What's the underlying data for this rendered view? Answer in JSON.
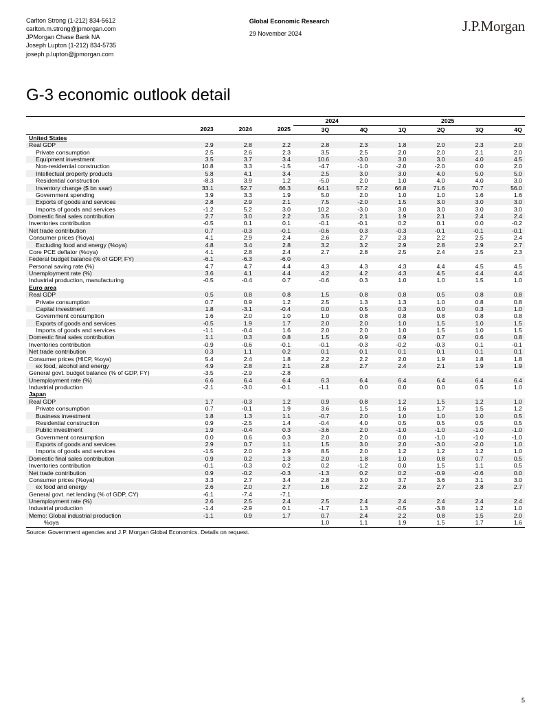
{
  "header": {
    "left": {
      "line1": "Carlton Strong  (1-212) 834-5612",
      "line2": "carlton.m.strong@jpmorgan.com",
      "line3": "JPMorgan Chase Bank NA",
      "line4": "Joseph Lupton  (1-212) 834-5735",
      "line5": "joseph.p.lupton@jpmorgan.com"
    },
    "center": {
      "title": "Global Economic Research",
      "date": "29 November 2024"
    },
    "logo": "J.P.Morgan"
  },
  "page_title": "G-3 economic outlook detail",
  "columns": {
    "years": [
      "2023",
      "2024",
      "2025"
    ],
    "group_2024": "2024",
    "group_2025": "2025",
    "q24": [
      "3Q",
      "4Q"
    ],
    "q25": [
      "1Q",
      "2Q",
      "3Q",
      "4Q"
    ]
  },
  "sections": [
    {
      "name": "United States",
      "rows": [
        {
          "label": "Real GDP",
          "indent": 0,
          "alt": 1,
          "v": [
            "2.9",
            "2.8",
            "2.2",
            "2.8",
            "2.3",
            "1.8",
            "2.0",
            "2.3",
            "2.0"
          ]
        },
        {
          "label": "Private consumption",
          "indent": 1,
          "alt": 0,
          "v": [
            "2.5",
            "2.6",
            "2.3",
            "3.5",
            "2.5",
            "2.0",
            "2.0",
            "2.1",
            "2.0"
          ]
        },
        {
          "label": "Equipment investment",
          "indent": 1,
          "alt": 1,
          "v": [
            "3.5",
            "3.7",
            "3.4",
            "10.6",
            "-3.0",
            "3.0",
            "3.0",
            "4.0",
            "4.5"
          ]
        },
        {
          "label": "Non-residential construction",
          "indent": 1,
          "alt": 0,
          "v": [
            "10.8",
            "3.3",
            "-1.5",
            "-4.7",
            "-1.0",
            "-2.0",
            "-2.0",
            "0.0",
            "2.0"
          ]
        },
        {
          "label": "Intellectual property products",
          "indent": 1,
          "alt": 1,
          "v": [
            "5.8",
            "4.1",
            "3.4",
            "2.5",
            "3.0",
            "3.0",
            "4.0",
            "5.0",
            "5.0"
          ]
        },
        {
          "label": "Residential construction",
          "indent": 1,
          "alt": 0,
          "v": [
            "-8.3",
            "3.9",
            "1.2",
            "-5.0",
            "2.0",
            "1.0",
            "4.0",
            "4.0",
            "3.0"
          ]
        },
        {
          "label": "Inventory change ($ bn saar)",
          "indent": 1,
          "alt": 1,
          "v": [
            "33.1",
            "52.7",
            "66.3",
            "64.1",
            "57.2",
            "66.8",
            "71.6",
            "70.7",
            "56.0"
          ]
        },
        {
          "label": "Government spending",
          "indent": 1,
          "alt": 0,
          "v": [
            "3.9",
            "3.3",
            "1.9",
            "5.0",
            "2.0",
            "1.0",
            "1.0",
            "1.6",
            "1.6"
          ]
        },
        {
          "label": "Exports of goods and services",
          "indent": 1,
          "alt": 1,
          "v": [
            "2.8",
            "2.9",
            "2.1",
            "7.5",
            "-2.0",
            "1.5",
            "3.0",
            "3.0",
            "3.0"
          ]
        },
        {
          "label": "Imports of goods and services",
          "indent": 1,
          "alt": 0,
          "v": [
            "-1.2",
            "5.2",
            "3.0",
            "10.2",
            "-3.0",
            "3.0",
            "3.0",
            "3.0",
            "3.0"
          ]
        },
        {
          "label": "Domestic final sales contribution",
          "indent": 0,
          "alt": 1,
          "v": [
            "2.7",
            "3.0",
            "2.2",
            "3.5",
            "2.1",
            "1.9",
            "2.1",
            "2.4",
            "2.4"
          ]
        },
        {
          "label": "Inventories contribution",
          "indent": 0,
          "alt": 0,
          "v": [
            "-0.5",
            "0.1",
            "0.1",
            "-0.1",
            "-0.1",
            "0.2",
            "0.1",
            "0.0",
            "-0.2"
          ]
        },
        {
          "label": "Net trade contribution",
          "indent": 0,
          "alt": 1,
          "v": [
            "0.7",
            "-0.3",
            "-0.1",
            "-0.6",
            "0.3",
            "-0.3",
            "-0.1",
            "-0.1",
            "-0.1"
          ]
        },
        {
          "label": "Consumer prices (%oya)",
          "indent": 0,
          "alt": 0,
          "v": [
            "4.1",
            "2.9",
            "2.4",
            "2.6",
            "2.7",
            "2.3",
            "2.2",
            "2.5",
            "2.4"
          ]
        },
        {
          "label": "Excluding food and energy (%oya)",
          "indent": 1,
          "alt": 1,
          "v": [
            "4.8",
            "3.4",
            "2.8",
            "3.2",
            "3.2",
            "2.9",
            "2.8",
            "2.9",
            "2.7"
          ]
        },
        {
          "label": "Core PCE deflator (%oya)",
          "indent": 0,
          "alt": 0,
          "v": [
            "4.1",
            "2.8",
            "2.4",
            "2.7",
            "2.8",
            "2.5",
            "2.4",
            "2.5",
            "2.3"
          ]
        },
        {
          "label": "Federal budget balance (% of GDP, FY)",
          "indent": 0,
          "alt": 1,
          "v": [
            "-6.1",
            "-6.3",
            "-6.0",
            "",
            "",
            "",
            "",
            "",
            ""
          ]
        },
        {
          "label": "Personal saving rate (%)",
          "indent": 0,
          "alt": 0,
          "v": [
            "4.7",
            "4.7",
            "4.4",
            "4.3",
            "4.3",
            "4.3",
            "4.4",
            "4.5",
            "4.5"
          ]
        },
        {
          "label": "Unemployment rate (%)",
          "indent": 0,
          "alt": 1,
          "v": [
            "3.6",
            "4.1",
            "4.4",
            "4.2",
            "4.2",
            "4.3",
            "4.5",
            "4.4",
            "4.4"
          ]
        },
        {
          "label": "Industrial production, manufacturing",
          "indent": 0,
          "alt": 0,
          "v": [
            "-0.5",
            "-0.4",
            "0.7",
            "-0.6",
            "0.3",
            "1.0",
            "1.0",
            "1.5",
            "1.0"
          ]
        }
      ]
    },
    {
      "name": "Euro area",
      "rows": [
        {
          "label": "Real GDP",
          "indent": 0,
          "alt": 1,
          "v": [
            "0.5",
            "0.8",
            "0.8",
            "1.5",
            "0.8",
            "0.8",
            "0.5",
            "0.8",
            "0.8"
          ]
        },
        {
          "label": "Private consumption",
          "indent": 1,
          "alt": 0,
          "v": [
            "0.7",
            "0.9",
            "1.2",
            "2.5",
            "1.3",
            "1.3",
            "1.0",
            "0.8",
            "0.8"
          ]
        },
        {
          "label": "Capital investment",
          "indent": 1,
          "alt": 1,
          "v": [
            "1.8",
            "-3.1",
            "-0.4",
            "0.0",
            "0.5",
            "0.3",
            "0.0",
            "0.3",
            "1.0"
          ]
        },
        {
          "label": "Government consumption",
          "indent": 1,
          "alt": 0,
          "v": [
            "1.6",
            "2.0",
            "1.0",
            "1.0",
            "0.8",
            "0.8",
            "0.8",
            "0.8",
            "0.8"
          ]
        },
        {
          "label": "Exports of goods and services",
          "indent": 1,
          "alt": 1,
          "v": [
            "-0.5",
            "1.9",
            "1.7",
            "2.0",
            "2.0",
            "1.0",
            "1.5",
            "1.0",
            "1.5"
          ]
        },
        {
          "label": "Imports of goods and services",
          "indent": 1,
          "alt": 0,
          "v": [
            "-1.1",
            "-0.4",
            "1.6",
            "2.0",
            "2.0",
            "1.0",
            "1.5",
            "1.0",
            "1.5"
          ]
        },
        {
          "label": "Domestic final sales contribution",
          "indent": 0,
          "alt": 1,
          "v": [
            "1.1",
            "0.3",
            "0.8",
            "1.5",
            "0.9",
            "0.9",
            "0.7",
            "0.6",
            "0.8"
          ]
        },
        {
          "label": "Inventories contribution",
          "indent": 0,
          "alt": 0,
          "v": [
            "-0.9",
            "-0.6",
            "-0.1",
            "-0.1",
            "-0.3",
            "-0.2",
            "-0.3",
            "0.1",
            "-0.1"
          ]
        },
        {
          "label": "Net trade contribution",
          "indent": 0,
          "alt": 1,
          "v": [
            "0.3",
            "1.1",
            "0.2",
            "0.1",
            "0.1",
            "0.1",
            "0.1",
            "0.1",
            "0.1"
          ]
        },
        {
          "label": "Consumer prices (HICP, %oya)",
          "indent": 0,
          "alt": 0,
          "v": [
            "5.4",
            "2.4",
            "1.8",
            "2.2",
            "2.2",
            "2.0",
            "1.9",
            "1.8",
            "1.8"
          ]
        },
        {
          "label": "ex food, alcohol and energy",
          "indent": 1,
          "alt": 1,
          "v": [
            "4.9",
            "2.8",
            "2.1",
            "2.8",
            "2.7",
            "2.4",
            "2.1",
            "1.9",
            "1.9"
          ]
        },
        {
          "label": "General govt. budget balance (% of GDP, FY)",
          "indent": 0,
          "alt": 0,
          "v": [
            "-3.5",
            "-2.9",
            "-2.8",
            "",
            "",
            "",
            "",
            "",
            ""
          ]
        },
        {
          "label": "Unemployment rate (%)",
          "indent": 0,
          "alt": 1,
          "v": [
            "6.6",
            "6.4",
            "6.4",
            "6.3",
            "6.4",
            "6.4",
            "6.4",
            "6.4",
            "6.4"
          ]
        },
        {
          "label": "Industrial production",
          "indent": 0,
          "alt": 0,
          "v": [
            "-2.1",
            "-3.0",
            "-0.1",
            "-1.1",
            "0.0",
            "0.0",
            "0.0",
            "0.5",
            "1.0"
          ]
        }
      ]
    },
    {
      "name": "Japan",
      "rows": [
        {
          "label": "Real GDP",
          "indent": 0,
          "alt": 1,
          "v": [
            "1.7",
            "-0.3",
            "1.2",
            "0.9",
            "0.8",
            "1.2",
            "1.5",
            "1.2",
            "1.0"
          ]
        },
        {
          "label": "Private consumption",
          "indent": 1,
          "alt": 0,
          "v": [
            "0.7",
            "-0.1",
            "1.9",
            "3.6",
            "1.5",
            "1.6",
            "1.7",
            "1.5",
            "1.2"
          ]
        },
        {
          "label": "Business investment",
          "indent": 1,
          "alt": 1,
          "v": [
            "1.8",
            "1.3",
            "1.1",
            "-0.7",
            "2.0",
            "1.0",
            "1.0",
            "1.0",
            "0.5"
          ]
        },
        {
          "label": "Residential construction",
          "indent": 1,
          "alt": 0,
          "v": [
            "0.9",
            "-2.5",
            "1.4",
            "-0.4",
            "4.0",
            "0.5",
            "0.5",
            "0.5",
            "0.5"
          ]
        },
        {
          "label": "Public investment",
          "indent": 1,
          "alt": 1,
          "v": [
            "1.9",
            "-0.4",
            "0.3",
            "-3.6",
            "2.0",
            "-1.0",
            "-1.0",
            "-1.0",
            "-1.0"
          ]
        },
        {
          "label": "Government consumption",
          "indent": 1,
          "alt": 0,
          "v": [
            "0.0",
            "0.6",
            "0.3",
            "2.0",
            "2.0",
            "0.0",
            "-1.0",
            "-1.0",
            "-1.0"
          ]
        },
        {
          "label": "Exports of goods and services",
          "indent": 1,
          "alt": 1,
          "v": [
            "2.9",
            "0.7",
            "1.1",
            "1.5",
            "3.0",
            "2.0",
            "-3.0",
            "-2.0",
            "1.0"
          ]
        },
        {
          "label": "Imports of goods and services",
          "indent": 1,
          "alt": 0,
          "v": [
            "-1.5",
            "2.0",
            "2.9",
            "8.5",
            "2.0",
            "1.2",
            "1.2",
            "1.2",
            "1.0"
          ]
        },
        {
          "label": "Domestic final sales contribution",
          "indent": 0,
          "alt": 1,
          "v": [
            "0.9",
            "0.2",
            "1.3",
            "2.0",
            "1.8",
            "1.0",
            "0.8",
            "0.7",
            "0.5"
          ]
        },
        {
          "label": "Inventories contribution",
          "indent": 0,
          "alt": 0,
          "v": [
            "-0.1",
            "-0.3",
            "0.2",
            "0.2",
            "-1.2",
            "0.0",
            "1.5",
            "1.1",
            "0.5"
          ]
        },
        {
          "label": "Net trade contribution",
          "indent": 0,
          "alt": 1,
          "v": [
            "0.9",
            "-0.2",
            "-0.3",
            "-1.3",
            "0.2",
            "0.2",
            "-0.9",
            "-0.6",
            "0.0"
          ]
        },
        {
          "label": "Consumer prices (%oya)",
          "indent": 0,
          "alt": 0,
          "v": [
            "3.3",
            "2.7",
            "3.4",
            "2.8",
            "3.0",
            "3.7",
            "3.6",
            "3.1",
            "3.0"
          ]
        },
        {
          "label": "ex food and energy",
          "indent": 1,
          "alt": 1,
          "v": [
            "2.6",
            "2.0",
            "2.7",
            "1.6",
            "2.2",
            "2.6",
            "2.7",
            "2.8",
            "2.7"
          ]
        },
        {
          "label": "General govt. net lending (% of GDP, CY)",
          "indent": 0,
          "alt": 0,
          "v": [
            "-6.1",
            "-7.4",
            "-7.1",
            "",
            "",
            "",
            "",
            "",
            ""
          ]
        },
        {
          "label": "Unemployment rate (%)",
          "indent": 0,
          "alt": 1,
          "v": [
            "2.6",
            "2.5",
            "2.4",
            "2.5",
            "2.4",
            "2.4",
            "2.4",
            "2.4",
            "2.4"
          ]
        },
        {
          "label": "Industrial production",
          "indent": 0,
          "alt": 0,
          "v": [
            "-1.4",
            "-2.9",
            "0.1",
            "-1.7",
            "1.3",
            "-0.5",
            "-3.8",
            "1.2",
            "1.0"
          ]
        },
        {
          "label": "Memo: Global industrial production",
          "indent": 0,
          "alt": 1,
          "v": [
            "-1.1",
            "0.9",
            "1.7",
            "0.7",
            "2.4",
            "2.2",
            "0.8",
            "1.5",
            "2.0"
          ]
        },
        {
          "label": "%oya",
          "indent": 2,
          "alt": 0,
          "v": [
            "",
            "",
            "",
            "1.0",
            "1.1",
            "1.9",
            "1.5",
            "1.7",
            "1.6"
          ]
        }
      ]
    }
  ],
  "source": "Source: Government agencies and J.P. Morgan Global Economics. Details on request.",
  "page_number": "5",
  "colors": {
    "row_alt": "#efefef",
    "text": "#000000",
    "logo": "#2a2522",
    "border": "#000000",
    "bg": "#ffffff"
  }
}
